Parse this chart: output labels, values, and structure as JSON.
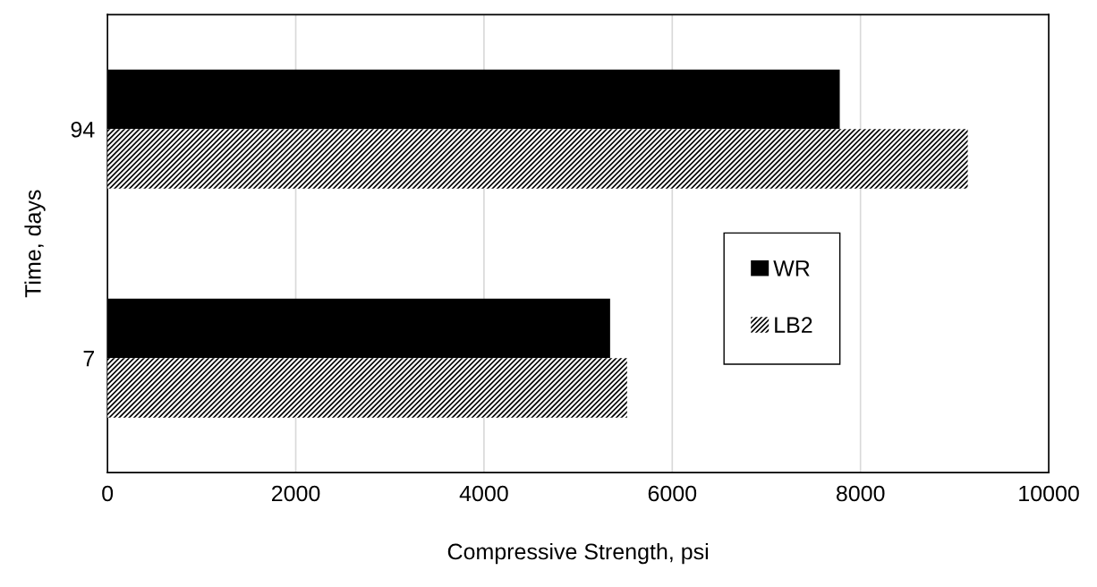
{
  "chart_data": {
    "type": "bar",
    "orientation": "horizontal",
    "xlabel": "Compressive Strength, psi",
    "ylabel": "Time, days",
    "categories": [
      "94",
      "7"
    ],
    "series": [
      {
        "name": "WR",
        "color": "#000000",
        "values": [
          7780,
          5340
        ]
      },
      {
        "name": "LB2",
        "color": "#000000",
        "values": [
          9140,
          5520
        ]
      }
    ],
    "xlim": [
      0,
      10000
    ],
    "xticks": [
      0,
      2000,
      4000,
      6000,
      8000,
      10000
    ],
    "grid": "x",
    "legend": "right"
  }
}
